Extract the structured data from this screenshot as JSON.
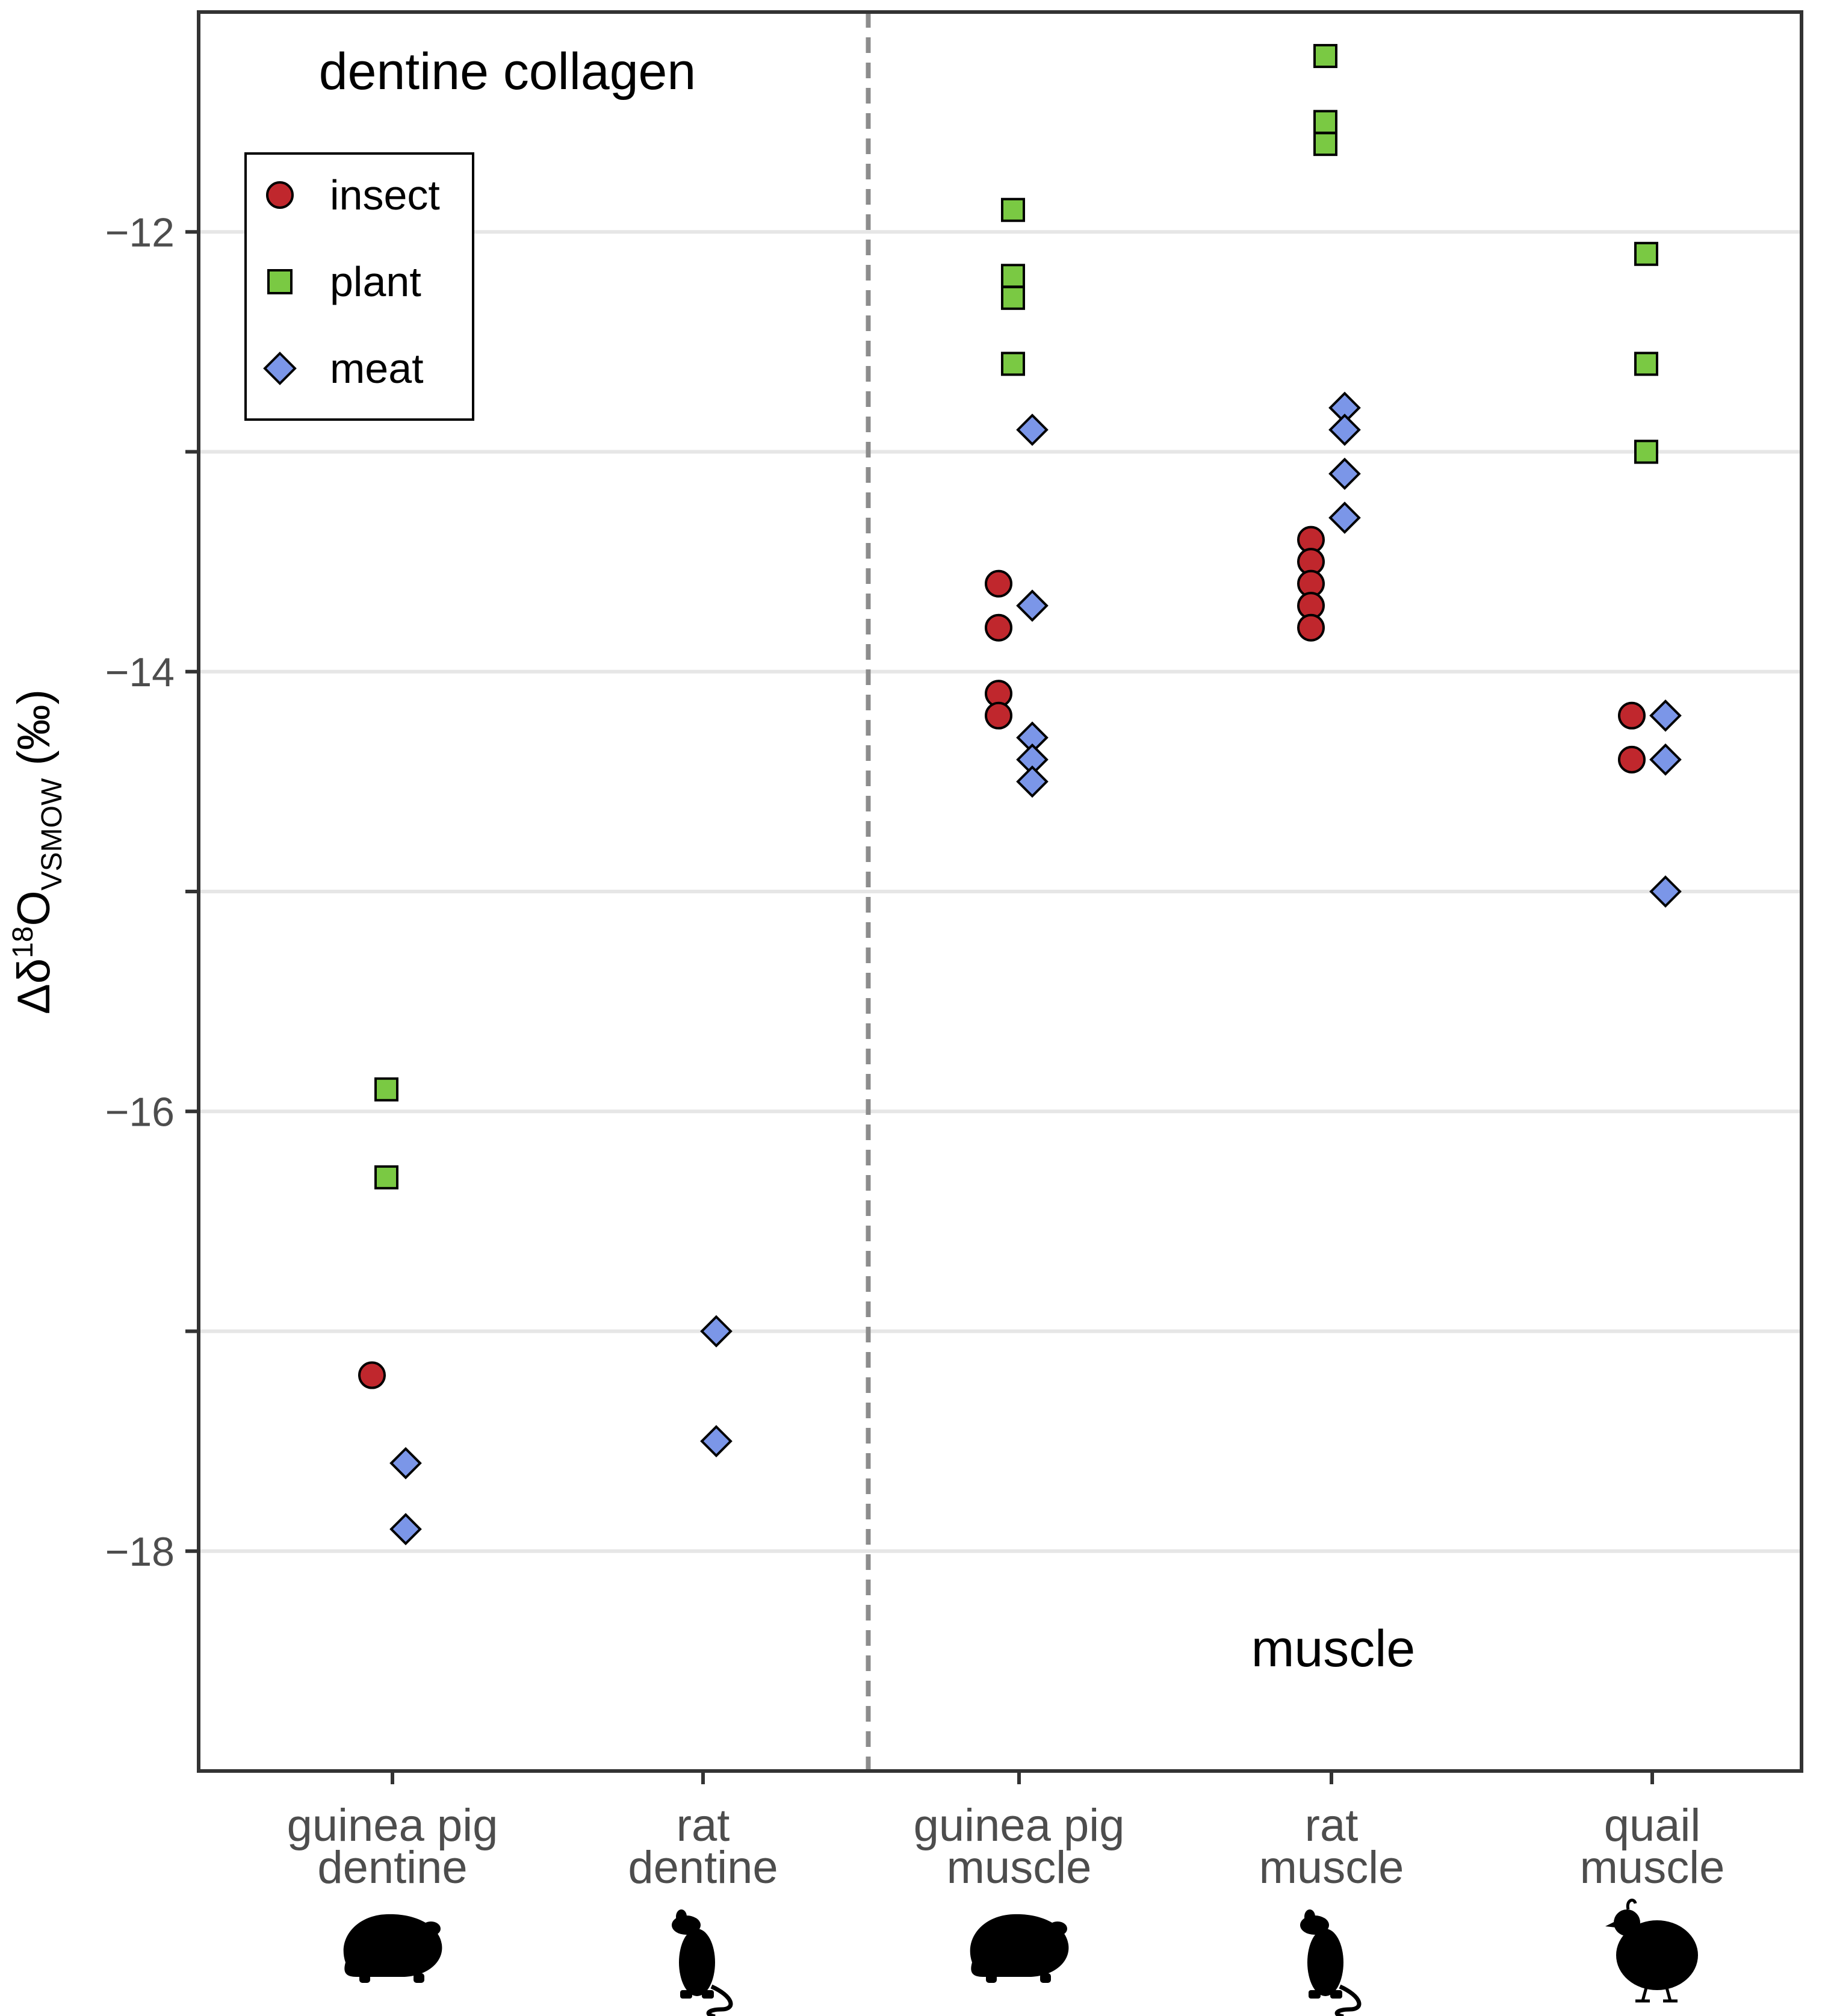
{
  "chart_data": {
    "type": "scatter",
    "title": "",
    "ylabel": {
      "prefix": "Δδ",
      "superscript": "18",
      "main": "O",
      "subscript": "VSMOW",
      "suffix": " (‰)"
    },
    "xlabel": "",
    "ylim": [
      -19,
      -11
    ],
    "yticks": [
      -18,
      -16,
      -14,
      -12
    ],
    "ytick_labels": [
      "−18",
      "−16",
      "−14",
      "−12"
    ],
    "minor_yticks": [
      -17,
      -15,
      -13
    ],
    "grid": true,
    "categories": [
      {
        "key": "gp_dentine",
        "line1": "guinea pig",
        "line2": "dentine",
        "icon": "guinea-pig"
      },
      {
        "key": "rat_dentine",
        "line1": "rat",
        "line2": "dentine",
        "icon": "rat"
      },
      {
        "key": "gp_muscle",
        "line1": "guinea pig",
        "line2": "muscle",
        "icon": "guinea-pig"
      },
      {
        "key": "rat_muscle",
        "line1": "rat",
        "line2": "muscle",
        "icon": "rat"
      },
      {
        "key": "quail_muscle",
        "line1": "quail",
        "line2": "muscle",
        "icon": "quail"
      }
    ],
    "divider_after_category": 2,
    "panel_labels": {
      "left": "dentine collagen",
      "right": "muscle"
    },
    "legend": {
      "position": "top-left",
      "entries": [
        {
          "name": "insect",
          "shape": "circle",
          "color": "#c0272d"
        },
        {
          "name": "plant",
          "shape": "square",
          "color": "#7ac943"
        },
        {
          "name": "meat",
          "shape": "diamond",
          "color": "#7b96e8"
        }
      ]
    },
    "series": [
      {
        "name": "insect",
        "shape": "circle",
        "color": "#c0272d",
        "points": [
          {
            "category": 0,
            "y": -17.2
          },
          {
            "category": 2,
            "y": -13.6
          },
          {
            "category": 2,
            "y": -13.8
          },
          {
            "category": 2,
            "y": -14.1
          },
          {
            "category": 2,
            "y": -14.2
          },
          {
            "category": 3,
            "y": -13.4
          },
          {
            "category": 3,
            "y": -13.5
          },
          {
            "category": 3,
            "y": -13.6
          },
          {
            "category": 3,
            "y": -13.7
          },
          {
            "category": 3,
            "y": -13.8
          },
          {
            "category": 4,
            "y": -14.2
          },
          {
            "category": 4,
            "y": -14.4
          }
        ]
      },
      {
        "name": "plant",
        "shape": "square",
        "color": "#7ac943",
        "points": [
          {
            "category": 0,
            "y": -15.9
          },
          {
            "category": 0,
            "y": -16.3
          },
          {
            "category": 2,
            "y": -11.9
          },
          {
            "category": 2,
            "y": -12.2
          },
          {
            "category": 2,
            "y": -12.3
          },
          {
            "category": 2,
            "y": -12.6
          },
          {
            "category": 3,
            "y": -11.2
          },
          {
            "category": 3,
            "y": -11.5
          },
          {
            "category": 3,
            "y": -11.6
          },
          {
            "category": 4,
            "y": -12.1
          },
          {
            "category": 4,
            "y": -12.6
          },
          {
            "category": 4,
            "y": -13.0
          }
        ]
      },
      {
        "name": "meat",
        "shape": "diamond",
        "color": "#7b96e8",
        "points": [
          {
            "category": 0,
            "y": -17.6
          },
          {
            "category": 0,
            "y": -17.9
          },
          {
            "category": 1,
            "y": -17.0
          },
          {
            "category": 1,
            "y": -17.5
          },
          {
            "category": 2,
            "y": -12.9
          },
          {
            "category": 2,
            "y": -13.7
          },
          {
            "category": 2,
            "y": -14.3
          },
          {
            "category": 2,
            "y": -14.4
          },
          {
            "category": 2,
            "y": -14.5
          },
          {
            "category": 3,
            "y": -12.8
          },
          {
            "category": 3,
            "y": -12.9
          },
          {
            "category": 3,
            "y": -13.1
          },
          {
            "category": 3,
            "y": -13.3
          },
          {
            "category": 4,
            "y": -14.2
          },
          {
            "category": 4,
            "y": -14.4
          },
          {
            "category": 4,
            "y": -15.0
          }
        ]
      }
    ]
  }
}
